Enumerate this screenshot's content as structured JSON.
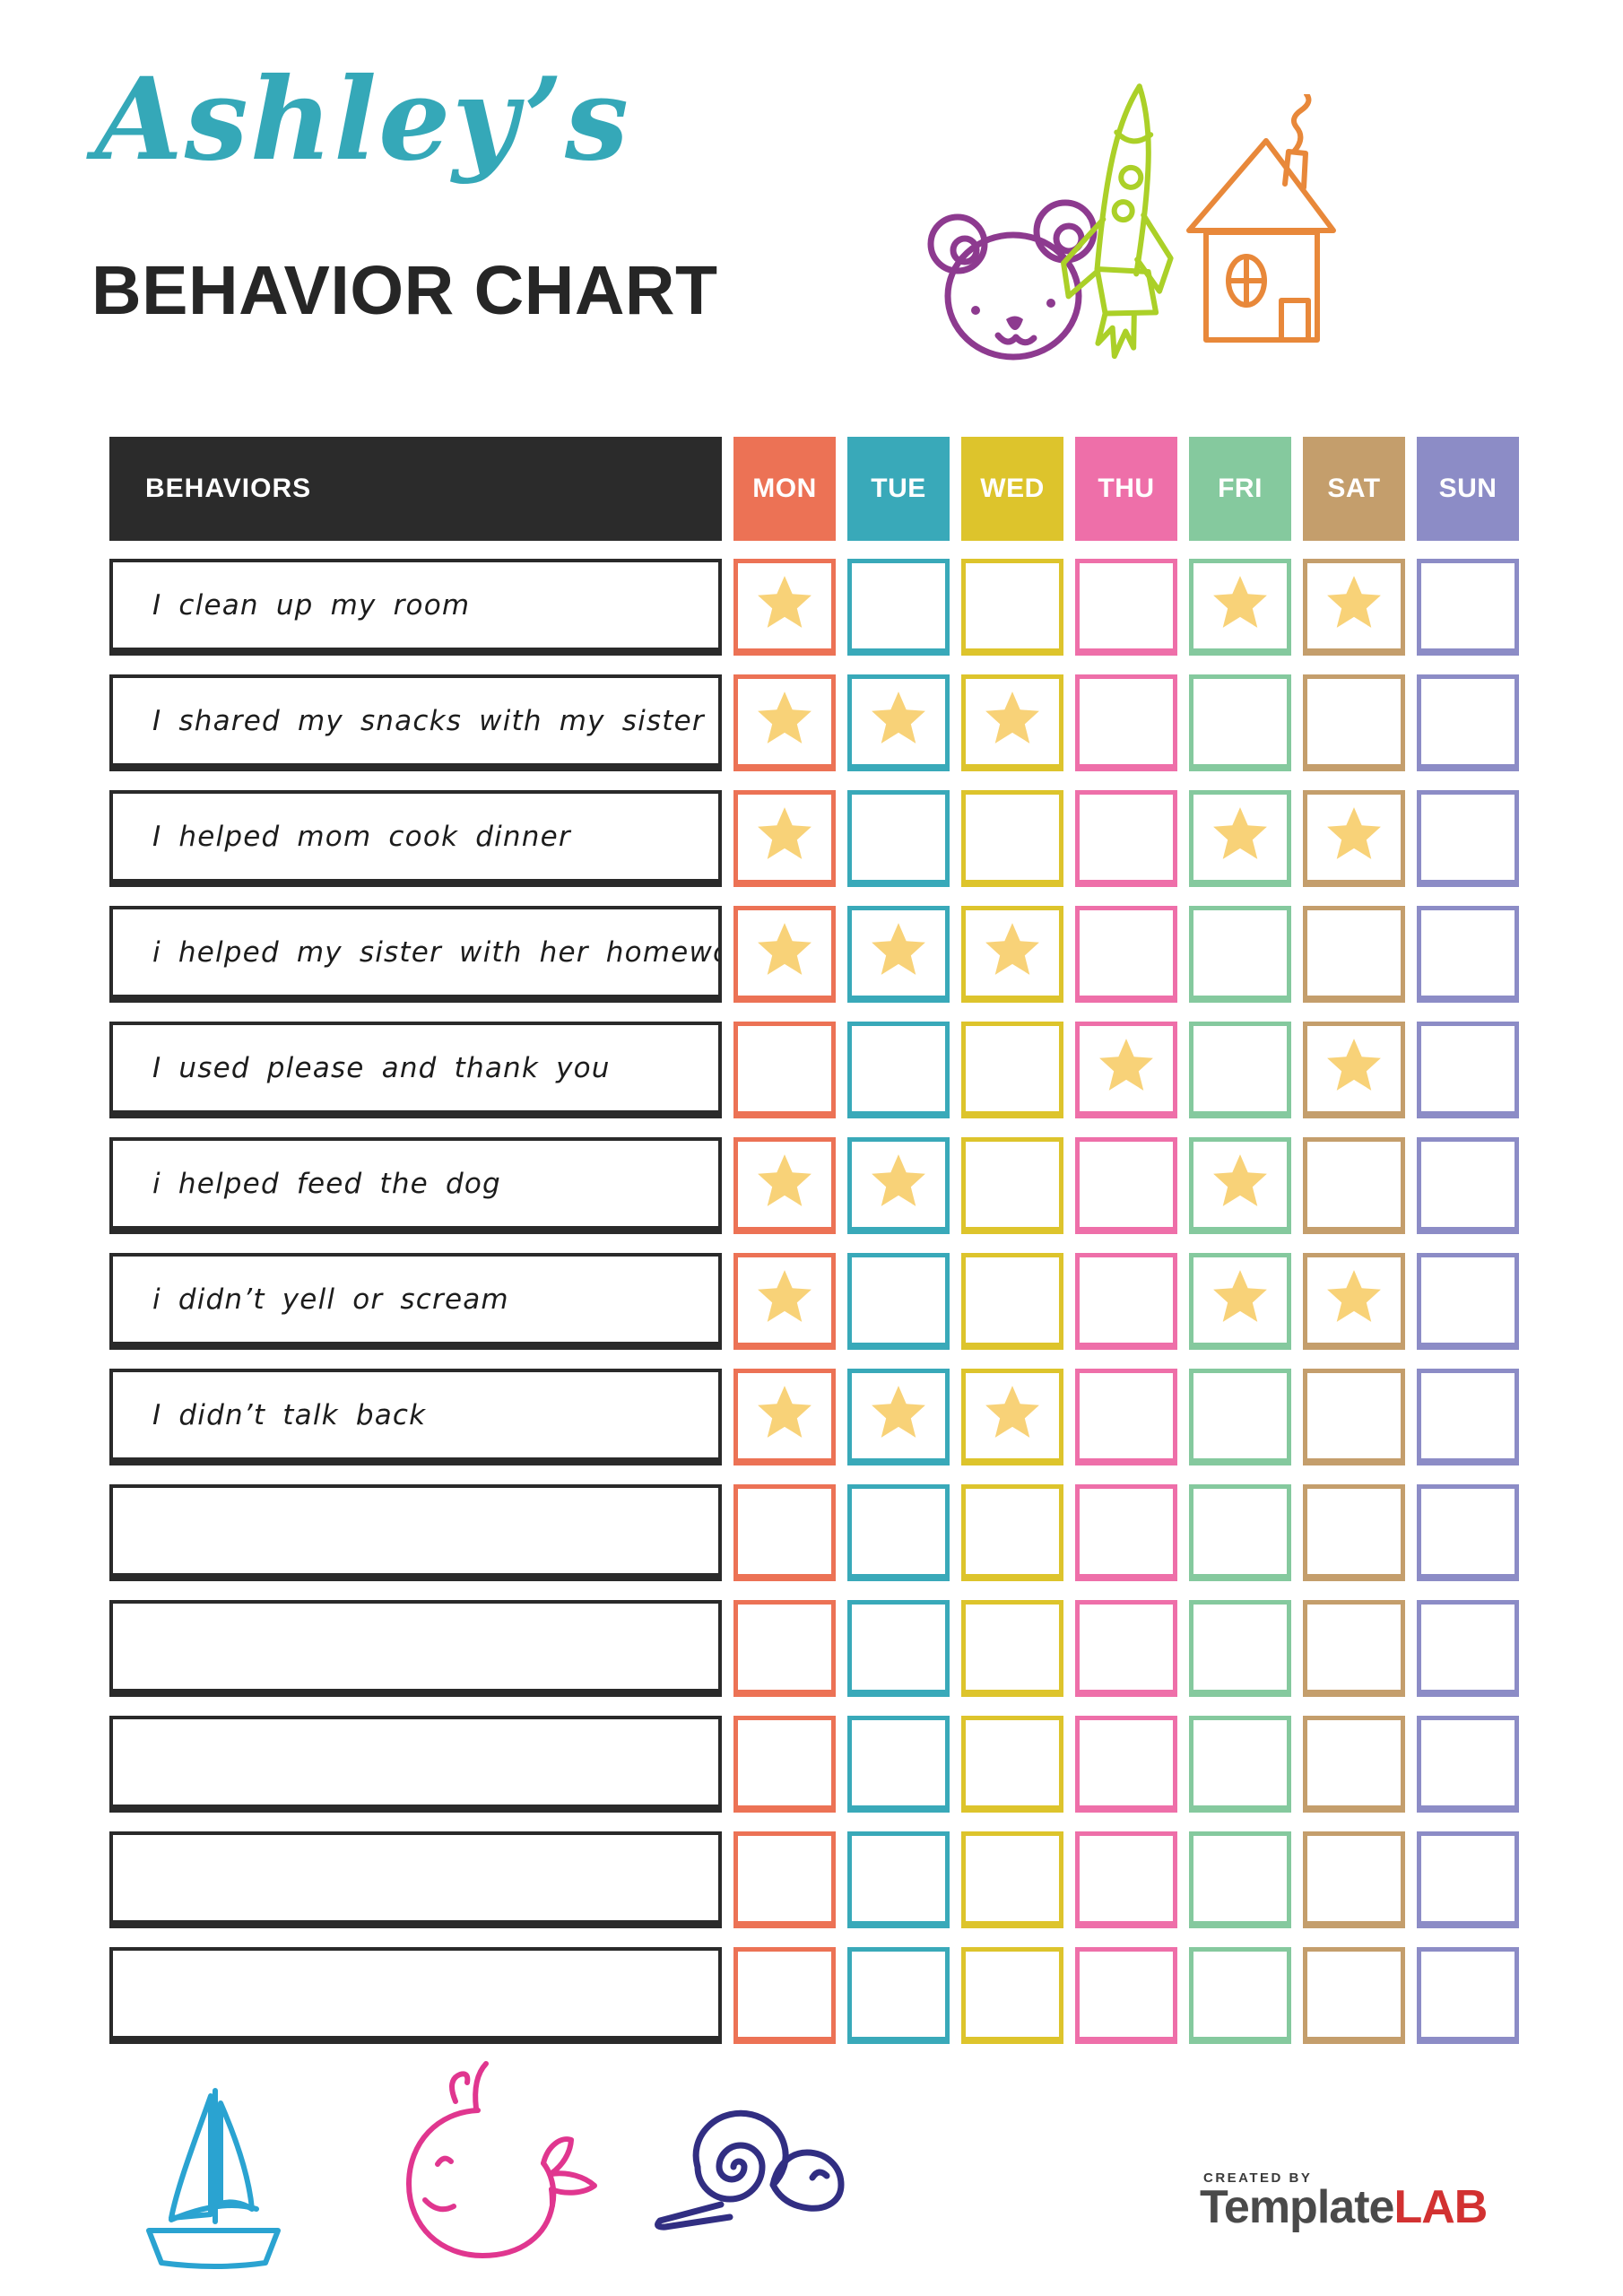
{
  "title": {
    "script": "Ashley’s",
    "script_color": "#35a8b8",
    "main": "BEHAVIOR CHART"
  },
  "table": {
    "behaviors_label": "BEHAVIORS"
  },
  "days": [
    {
      "label": "MON",
      "color": "#ec7255"
    },
    {
      "label": "TUE",
      "color": "#39a9b9"
    },
    {
      "label": "WED",
      "color": "#ddc42c"
    },
    {
      "label": "THU",
      "color": "#ee6fa9"
    },
    {
      "label": "FRI",
      "color": "#85c99e"
    },
    {
      "label": "SAT",
      "color": "#c49e6c"
    },
    {
      "label": "SUN",
      "color": "#8c8cc6"
    }
  ],
  "star_color": "#f8d278",
  "rows": [
    {
      "behavior": "I clean up my room",
      "stars": [
        1,
        0,
        0,
        0,
        1,
        1,
        0
      ]
    },
    {
      "behavior": "I shared my snacks with my sister",
      "stars": [
        1,
        1,
        1,
        0,
        0,
        0,
        0
      ]
    },
    {
      "behavior": "I helped mom cook dinner",
      "stars": [
        1,
        0,
        0,
        0,
        1,
        1,
        0
      ]
    },
    {
      "behavior": "i helped my sister with her homework",
      "stars": [
        1,
        1,
        1,
        0,
        0,
        0,
        0
      ]
    },
    {
      "behavior": "I used please and thank you",
      "stars": [
        0,
        0,
        0,
        1,
        0,
        1,
        0
      ]
    },
    {
      "behavior": "i helped feed the dog",
      "stars": [
        1,
        1,
        0,
        0,
        1,
        0,
        0
      ]
    },
    {
      "behavior": "i didn’t yell or scream",
      "stars": [
        1,
        0,
        0,
        0,
        1,
        1,
        0
      ]
    },
    {
      "behavior": "I didn’t talk back",
      "stars": [
        1,
        1,
        1,
        0,
        0,
        0,
        0
      ]
    },
    {
      "behavior": "",
      "stars": [
        0,
        0,
        0,
        0,
        0,
        0,
        0
      ]
    },
    {
      "behavior": "",
      "stars": [
        0,
        0,
        0,
        0,
        0,
        0,
        0
      ]
    },
    {
      "behavior": "",
      "stars": [
        0,
        0,
        0,
        0,
        0,
        0,
        0
      ]
    },
    {
      "behavior": "",
      "stars": [
        0,
        0,
        0,
        0,
        0,
        0,
        0
      ]
    },
    {
      "behavior": "",
      "stars": [
        0,
        0,
        0,
        0,
        0,
        0,
        0
      ]
    }
  ],
  "doodles": {
    "bear_color": "#8d3a8f",
    "rocket_color": "#abd028",
    "house_color": "#e8883a",
    "sailboat_color": "#2aa3d1",
    "whale_color": "#e0368f",
    "snail_color": "#312e82"
  },
  "footer": {
    "created_by": "CREATED BY",
    "brand": "Template",
    "brand_accent": "LAB",
    "brand_accent_color": "#d23131"
  }
}
